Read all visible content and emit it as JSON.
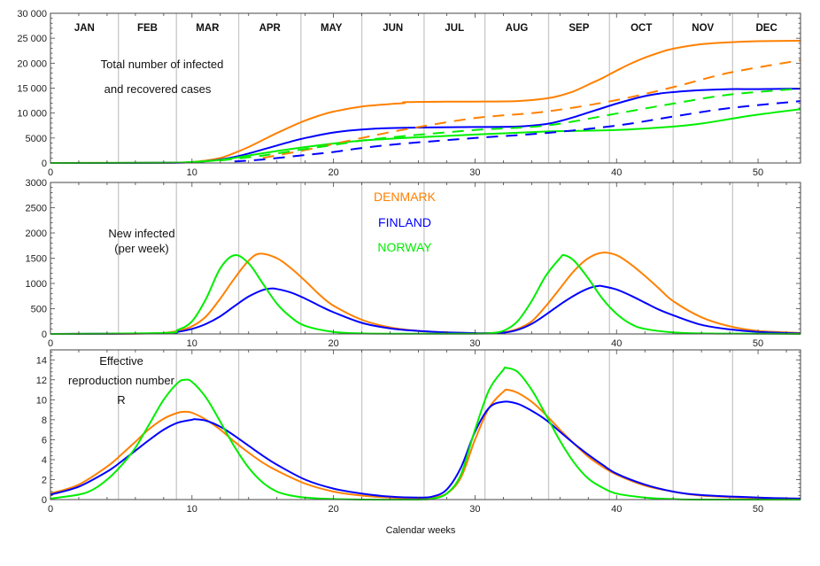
{
  "chart_data": [
    {
      "type": "line",
      "panel": "top",
      "annotation": [
        "Total number of infected",
        "and recovered cases"
      ],
      "xlim": [
        0,
        53
      ],
      "ylim": [
        0,
        30000
      ],
      "xticks": [
        "0",
        "10",
        "20",
        "30",
        "40",
        "50"
      ],
      "yticks": [
        "0",
        "5000",
        "10 000",
        "15 000",
        "20 000",
        "25 000",
        "30 000"
      ],
      "month_labels": [
        "JAN",
        "FEB",
        "MAR",
        "APR",
        "MAY",
        "JUN",
        "JUL",
        "AUG",
        "SEP",
        "OCT",
        "NOV",
        "DEC"
      ],
      "month_boundaries_weeks": [
        4.8,
        8.9,
        13.3,
        17.7,
        22.0,
        26.4,
        30.7,
        35.2,
        39.5,
        44.0,
        48.2
      ],
      "series": [
        {
          "country": "Denmark",
          "style": "solid",
          "color": "#ff8000",
          "x": [
            0,
            8,
            10,
            11,
            12,
            13,
            14,
            15,
            16,
            17,
            18,
            19,
            20,
            22,
            24,
            25,
            25.1,
            28,
            30,
            33,
            35,
            36,
            37,
            38,
            39,
            40,
            41,
            42,
            43,
            44,
            46,
            48,
            50,
            53
          ],
          "y": [
            0,
            50,
            200,
            500,
            1000,
            2000,
            3200,
            4600,
            6000,
            7300,
            8500,
            9500,
            10300,
            11300,
            11800,
            12000,
            12200,
            12300,
            12300,
            12400,
            12900,
            13500,
            14400,
            15700,
            17000,
            18500,
            19900,
            21100,
            22100,
            22900,
            23800,
            24200,
            24400,
            24500
          ]
        },
        {
          "country": "Finland",
          "style": "solid",
          "color": "#0000ff",
          "x": [
            0,
            8,
            10,
            11,
            12,
            13,
            14,
            15,
            16,
            17,
            18,
            20,
            22,
            24,
            26,
            30,
            33,
            35,
            36,
            37,
            38,
            39,
            40,
            41,
            42,
            43,
            44,
            46,
            48,
            50,
            53
          ],
          "y": [
            0,
            30,
            150,
            350,
            700,
            1200,
            1900,
            2700,
            3500,
            4300,
            5000,
            6100,
            6700,
            7000,
            7100,
            7200,
            7300,
            7800,
            8400,
            9200,
            10100,
            11000,
            11900,
            12700,
            13400,
            13900,
            14200,
            14600,
            14800,
            14800,
            14900
          ]
        },
        {
          "country": "Norway",
          "style": "solid",
          "color": "#00ee00",
          "x": [
            0,
            8,
            10,
            12,
            14,
            16,
            18,
            20,
            22,
            25,
            30,
            35,
            40,
            44,
            46,
            48,
            50,
            53
          ],
          "y": [
            0,
            50,
            200,
            600,
            1500,
            2400,
            3200,
            3900,
            4500,
            5000,
            5700,
            6300,
            6600,
            7300,
            7900,
            8800,
            9700,
            10800
          ]
        },
        {
          "country": "Denmark",
          "style": "dashed",
          "color": "#ff8000",
          "x": [
            15,
            18,
            20,
            22,
            25,
            30,
            35,
            40,
            44,
            48,
            53
          ],
          "y": [
            1000,
            2600,
            3800,
            5000,
            6700,
            9000,
            10300,
            12600,
            15200,
            18100,
            20600
          ]
        },
        {
          "country": "Finland",
          "style": "dashed",
          "color": "#0000ff",
          "x": [
            13,
            15,
            18,
            20,
            22,
            25,
            30,
            35,
            40,
            44,
            48,
            53
          ],
          "y": [
            300,
            700,
            1600,
            2200,
            3000,
            3900,
            5000,
            6000,
            7500,
            9300,
            11000,
            12400
          ]
        },
        {
          "country": "Norway",
          "style": "dashed",
          "color": "#00ee00",
          "x": [
            12,
            15,
            18,
            20,
            22,
            25,
            30,
            35,
            40,
            44,
            48,
            53
          ],
          "y": [
            500,
            1500,
            2800,
            3600,
            4500,
            5400,
            6600,
            7500,
            9900,
            11900,
            13700,
            14900
          ]
        }
      ]
    },
    {
      "type": "line",
      "panel": "middle",
      "annotation": [
        "New infected",
        "(per week)"
      ],
      "legend": [
        {
          "label": "DENMARK",
          "color": "#ff8000"
        },
        {
          "label": "FINLAND",
          "color": "#0000ff"
        },
        {
          "label": "NORWAY",
          "color": "#00ee00"
        }
      ],
      "xlim": [
        0,
        53
      ],
      "ylim": [
        0,
        3000
      ],
      "xticks": [
        "0",
        "10",
        "20",
        "30",
        "40",
        "50"
      ],
      "yticks": [
        "0",
        "500",
        "1000",
        "1500",
        "2000",
        "2500",
        "3000"
      ],
      "series": [
        {
          "country": "Denmark",
          "style": "solid",
          "color": "#ff8000",
          "x": [
            0,
            6,
            8,
            9,
            10,
            11,
            12,
            13,
            14,
            14.8,
            16,
            17,
            18,
            19,
            20,
            22,
            24,
            26,
            28,
            30,
            31,
            32,
            33,
            34,
            35,
            36,
            37,
            38,
            39,
            40,
            41,
            42,
            43,
            44,
            46,
            48,
            50,
            53
          ],
          "y": [
            0,
            5,
            20,
            60,
            150,
            350,
            700,
            1100,
            1450,
            1590,
            1500,
            1300,
            1050,
            780,
            560,
            280,
            130,
            60,
            30,
            15,
            15,
            30,
            100,
            250,
            550,
            900,
            1250,
            1500,
            1610,
            1560,
            1380,
            1150,
            900,
            650,
            330,
            150,
            60,
            20
          ]
        },
        {
          "country": "Finland",
          "style": "solid",
          "color": "#0000ff",
          "x": [
            0,
            8,
            9,
            10,
            11,
            12,
            13,
            14,
            15,
            15.6,
            16,
            17,
            18,
            19,
            20,
            22,
            24,
            26,
            28,
            30,
            31,
            32,
            33,
            34,
            35,
            36,
            37,
            38,
            38.7,
            39,
            40,
            41,
            42,
            43,
            44,
            46,
            48,
            50,
            53
          ],
          "y": [
            0,
            10,
            40,
            100,
            200,
            350,
            550,
            740,
            870,
            900,
            890,
            820,
            700,
            560,
            430,
            220,
            110,
            60,
            30,
            15,
            15,
            25,
            80,
            200,
            380,
            580,
            760,
            900,
            950,
            945,
            880,
            760,
            620,
            480,
            370,
            180,
            90,
            40,
            10
          ]
        },
        {
          "country": "Norway",
          "style": "solid",
          "color": "#00ee00",
          "x": [
            0,
            8,
            9,
            10,
            11,
            12,
            13,
            14,
            15,
            16,
            17,
            18,
            20,
            22,
            25,
            30,
            31,
            32,
            33,
            34,
            35,
            36,
            36.3,
            37,
            38,
            39,
            40,
            41,
            42,
            44,
            46,
            50,
            53
          ],
          "y": [
            0,
            20,
            80,
            250,
            700,
            1300,
            1560,
            1400,
            1000,
            600,
            330,
            160,
            40,
            10,
            5,
            5,
            15,
            60,
            250,
            650,
            1150,
            1500,
            1560,
            1450,
            1100,
            700,
            400,
            200,
            100,
            30,
            10,
            5,
            0
          ]
        }
      ]
    },
    {
      "type": "line",
      "panel": "bottom",
      "annotation": [
        "Effective",
        "reproduction number",
        "R"
      ],
      "xlabel": "Calendar weeks",
      "xlim": [
        0,
        53
      ],
      "ylim": [
        0,
        15
      ],
      "xticks": [
        "0",
        "10",
        "20",
        "30",
        "40",
        "50"
      ],
      "yticks": [
        "0",
        "2",
        "4",
        "6",
        "8",
        "10",
        "12",
        "14"
      ],
      "series": [
        {
          "country": "Denmark",
          "style": "solid",
          "color": "#ff8000",
          "x": [
            0,
            2,
            4,
            5,
            6,
            7,
            8,
            9,
            9.5,
            10,
            11,
            12,
            13,
            14,
            15,
            16,
            18,
            20,
            22,
            24,
            26,
            27,
            28,
            29,
            30,
            31,
            32,
            32.3,
            33,
            34,
            35,
            36,
            37,
            38,
            39,
            40,
            42,
            44,
            46,
            50,
            53
          ],
          "y": [
            0.6,
            1.5,
            3.3,
            4.5,
            5.8,
            7.1,
            8.1,
            8.7,
            8.8,
            8.7,
            8.0,
            7.0,
            5.8,
            4.7,
            3.7,
            2.9,
            1.6,
            0.8,
            0.4,
            0.2,
            0.1,
            0.2,
            0.6,
            2.2,
            6,
            9.2,
            10.8,
            11.0,
            10.7,
            9.8,
            8.5,
            7.0,
            5.6,
            4.3,
            3.3,
            2.5,
            1.4,
            0.8,
            0.4,
            0.15,
            0.1
          ]
        },
        {
          "country": "Finland",
          "style": "solid",
          "color": "#0000ff",
          "x": [
            0,
            2,
            4,
            5,
            6,
            7,
            8,
            9,
            10,
            10.2,
            11,
            12,
            13,
            14,
            15,
            16,
            18,
            20,
            22,
            24,
            26,
            27,
            28,
            29,
            30,
            31,
            32,
            33,
            34,
            35,
            36,
            37,
            38,
            39,
            40,
            42,
            44,
            46,
            50,
            53
          ],
          "y": [
            0.5,
            1.3,
            2.8,
            3.8,
            4.9,
            6.0,
            7.0,
            7.7,
            8.0,
            8.05,
            7.9,
            7.3,
            6.4,
            5.4,
            4.4,
            3.5,
            2.0,
            1.1,
            0.6,
            0.3,
            0.2,
            0.3,
            1.0,
            3.2,
            6.8,
            9.2,
            9.8,
            9.6,
            8.9,
            8.0,
            6.8,
            5.6,
            4.5,
            3.5,
            2.6,
            1.5,
            0.8,
            0.45,
            0.2,
            0.1
          ]
        },
        {
          "country": "Norway",
          "style": "solid",
          "color": "#00ee00",
          "x": [
            0,
            2,
            3,
            4,
            5,
            6,
            7,
            8,
            9,
            9.5,
            10,
            11,
            12,
            13,
            14,
            15,
            16,
            17,
            18,
            20,
            22,
            26,
            27,
            28,
            29,
            30,
            31,
            32,
            32.2,
            33,
            34,
            35,
            36,
            37,
            38,
            39,
            40,
            42,
            44,
            46,
            53
          ],
          "y": [
            0.1,
            0.5,
            1.0,
            2.0,
            3.4,
            5.2,
            7.6,
            10.0,
            11.7,
            12.0,
            11.8,
            10.2,
            7.8,
            5.3,
            3.2,
            1.7,
            0.8,
            0.4,
            0.2,
            0.05,
            0,
            0,
            0.1,
            0.6,
            2.5,
            7,
            11,
            13,
            13.2,
            12.8,
            11.0,
            8.5,
            5.9,
            3.7,
            2.1,
            1.2,
            0.6,
            0.2,
            0.05,
            0,
            0
          ]
        }
      ]
    }
  ]
}
